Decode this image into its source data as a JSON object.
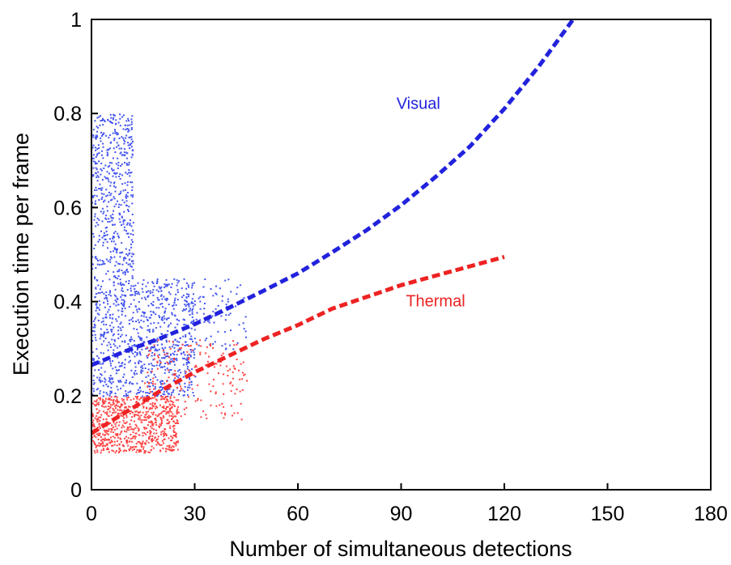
{
  "chart_data": {
    "type": "scatter",
    "title": "",
    "xlabel": "Number of simultaneous detections",
    "ylabel": "Execution time per frame",
    "xlim": [
      0,
      180
    ],
    "ylim": [
      0,
      1
    ],
    "xticks": [
      0,
      30,
      60,
      90,
      120,
      150,
      180
    ],
    "yticks": [
      0,
      0.2,
      0.4,
      0.6,
      0.8,
      1
    ],
    "grid": false,
    "legend": "none",
    "annotations": [
      {
        "text": "Visual",
        "color": "#2222dd",
        "x": 95,
        "y": 0.81
      },
      {
        "text": "Thermal",
        "color": "#ee2222",
        "x": 100,
        "y": 0.39
      }
    ],
    "series": [
      {
        "color": "#2222dd",
        "kind": "fitted-trend",
        "style": "dashed",
        "x": [
          0,
          10,
          20,
          30,
          40,
          50,
          60,
          70,
          80,
          90,
          100,
          110,
          120,
          130,
          140
        ],
        "y": [
          0.265,
          0.295,
          0.322,
          0.352,
          0.387,
          0.423,
          0.46,
          0.505,
          0.552,
          0.605,
          0.665,
          0.73,
          0.81,
          0.9,
          1.0
        ]
      },
      {
        "color": "#ee2222",
        "kind": "fitted-trend",
        "style": "dashed",
        "x": [
          0,
          10,
          20,
          30,
          40,
          50,
          60,
          70,
          80,
          90,
          100,
          110,
          120
        ],
        "y": [
          0.12,
          0.165,
          0.21,
          0.25,
          0.285,
          0.32,
          0.35,
          0.385,
          0.41,
          0.435,
          0.455,
          0.475,
          0.495
        ]
      },
      {
        "color": "#4455ee",
        "kind": "raw-samples",
        "clusters": [
          {
            "x_range": [
              0,
              30
            ],
            "y_range": [
              0.2,
              0.45
            ],
            "count": 900
          },
          {
            "x_range": [
              0,
              12
            ],
            "y_range": [
              0.45,
              0.8
            ],
            "count": 500
          },
          {
            "x_range": [
              30,
              45
            ],
            "y_range": [
              0.3,
              0.45
            ],
            "count": 80
          }
        ]
      },
      {
        "color": "#ff4444",
        "kind": "raw-samples",
        "clusters": [
          {
            "x_range": [
              0,
              25
            ],
            "y_range": [
              0.08,
              0.2
            ],
            "count": 700
          },
          {
            "x_range": [
              15,
              45
            ],
            "y_range": [
              0.15,
              0.32
            ],
            "count": 200
          }
        ]
      }
    ]
  }
}
